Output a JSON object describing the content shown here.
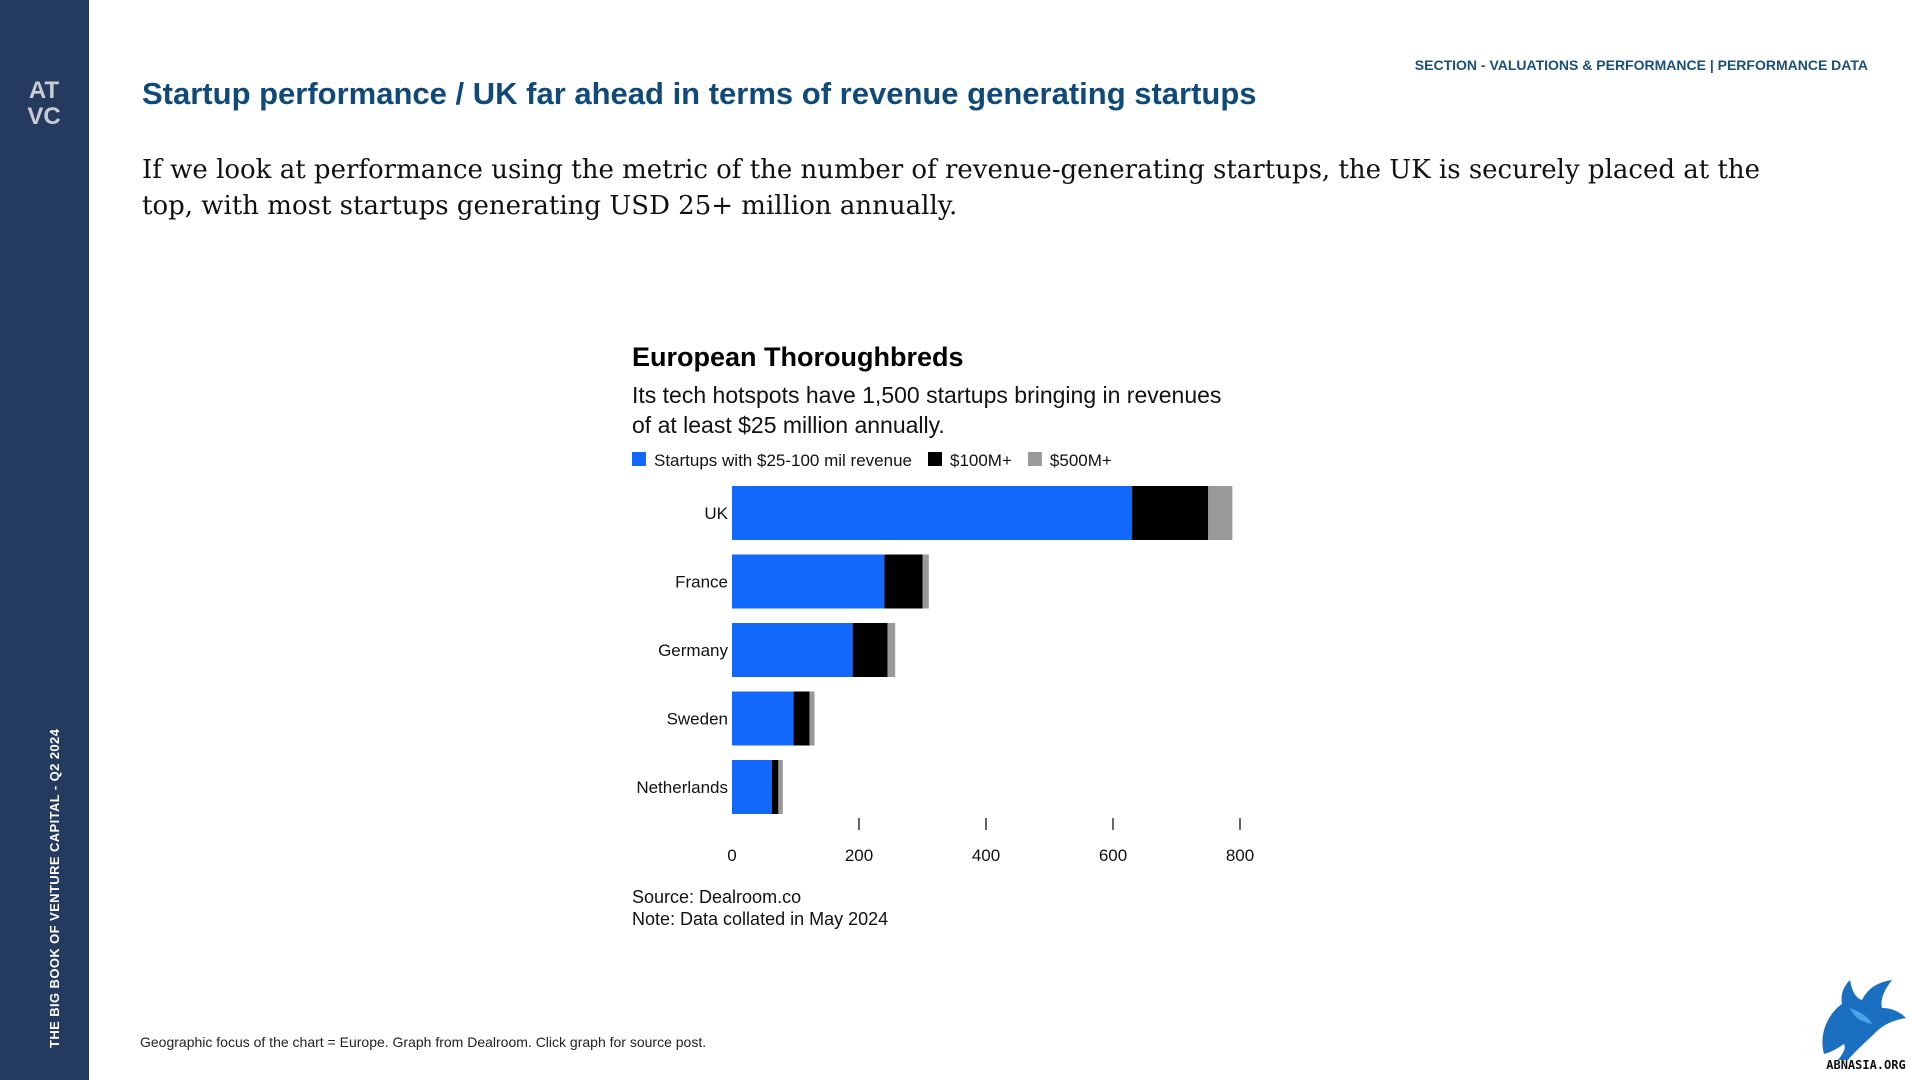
{
  "sidebar": {
    "logo_text_top": "AT",
    "logo_text_bottom": "VC",
    "vertical_label": "THE BIG BOOK OF VENTURE CAPITAL - Q2 2024",
    "color": "#243a5e"
  },
  "header": {
    "section": "SECTION - VALUATIONS & PERFORMANCE | PERFORMANCE DATA",
    "title": "Startup performance / UK far ahead in terms of revenue generating startups"
  },
  "intro": "If we look at performance using the metric of the number of revenue-generating startups, the UK is securely placed at the top, with most startups generating USD 25+ million annually.",
  "chart_data": {
    "type": "bar",
    "orientation": "horizontal",
    "stacked": true,
    "title": "European Thoroughbreds",
    "subtitle_lines": [
      "Its tech hotspots have 1,500 startups bringing in revenues",
      "of at least $25 million annually."
    ],
    "categories": [
      "UK",
      "France",
      "Germany",
      "Sweden",
      "Netherlands"
    ],
    "series": [
      {
        "name": "Startups with $25-100 mil revenue",
        "color": "#1268fb",
        "values": [
          630,
          240,
          190,
          97,
          63
        ]
      },
      {
        "name": "$100M+",
        "color": "#000000",
        "values": [
          120,
          60,
          55,
          25,
          10
        ]
      },
      {
        "name": "$500M+",
        "color": "#999999",
        "values": [
          38,
          10,
          12,
          8,
          7
        ]
      }
    ],
    "xlim": [
      0,
      800
    ],
    "xticks": [
      0,
      200,
      400,
      600,
      800
    ],
    "legend_position": "top-left",
    "grid": false,
    "source": "Source: Dealroom.co",
    "note": "Note: Data collated in May 2024"
  },
  "footer": {
    "caption": "Geographic focus of the chart = Europe. Graph from Dealroom. Click graph for source post.",
    "badge_text": "ABNASIA.ORG"
  }
}
